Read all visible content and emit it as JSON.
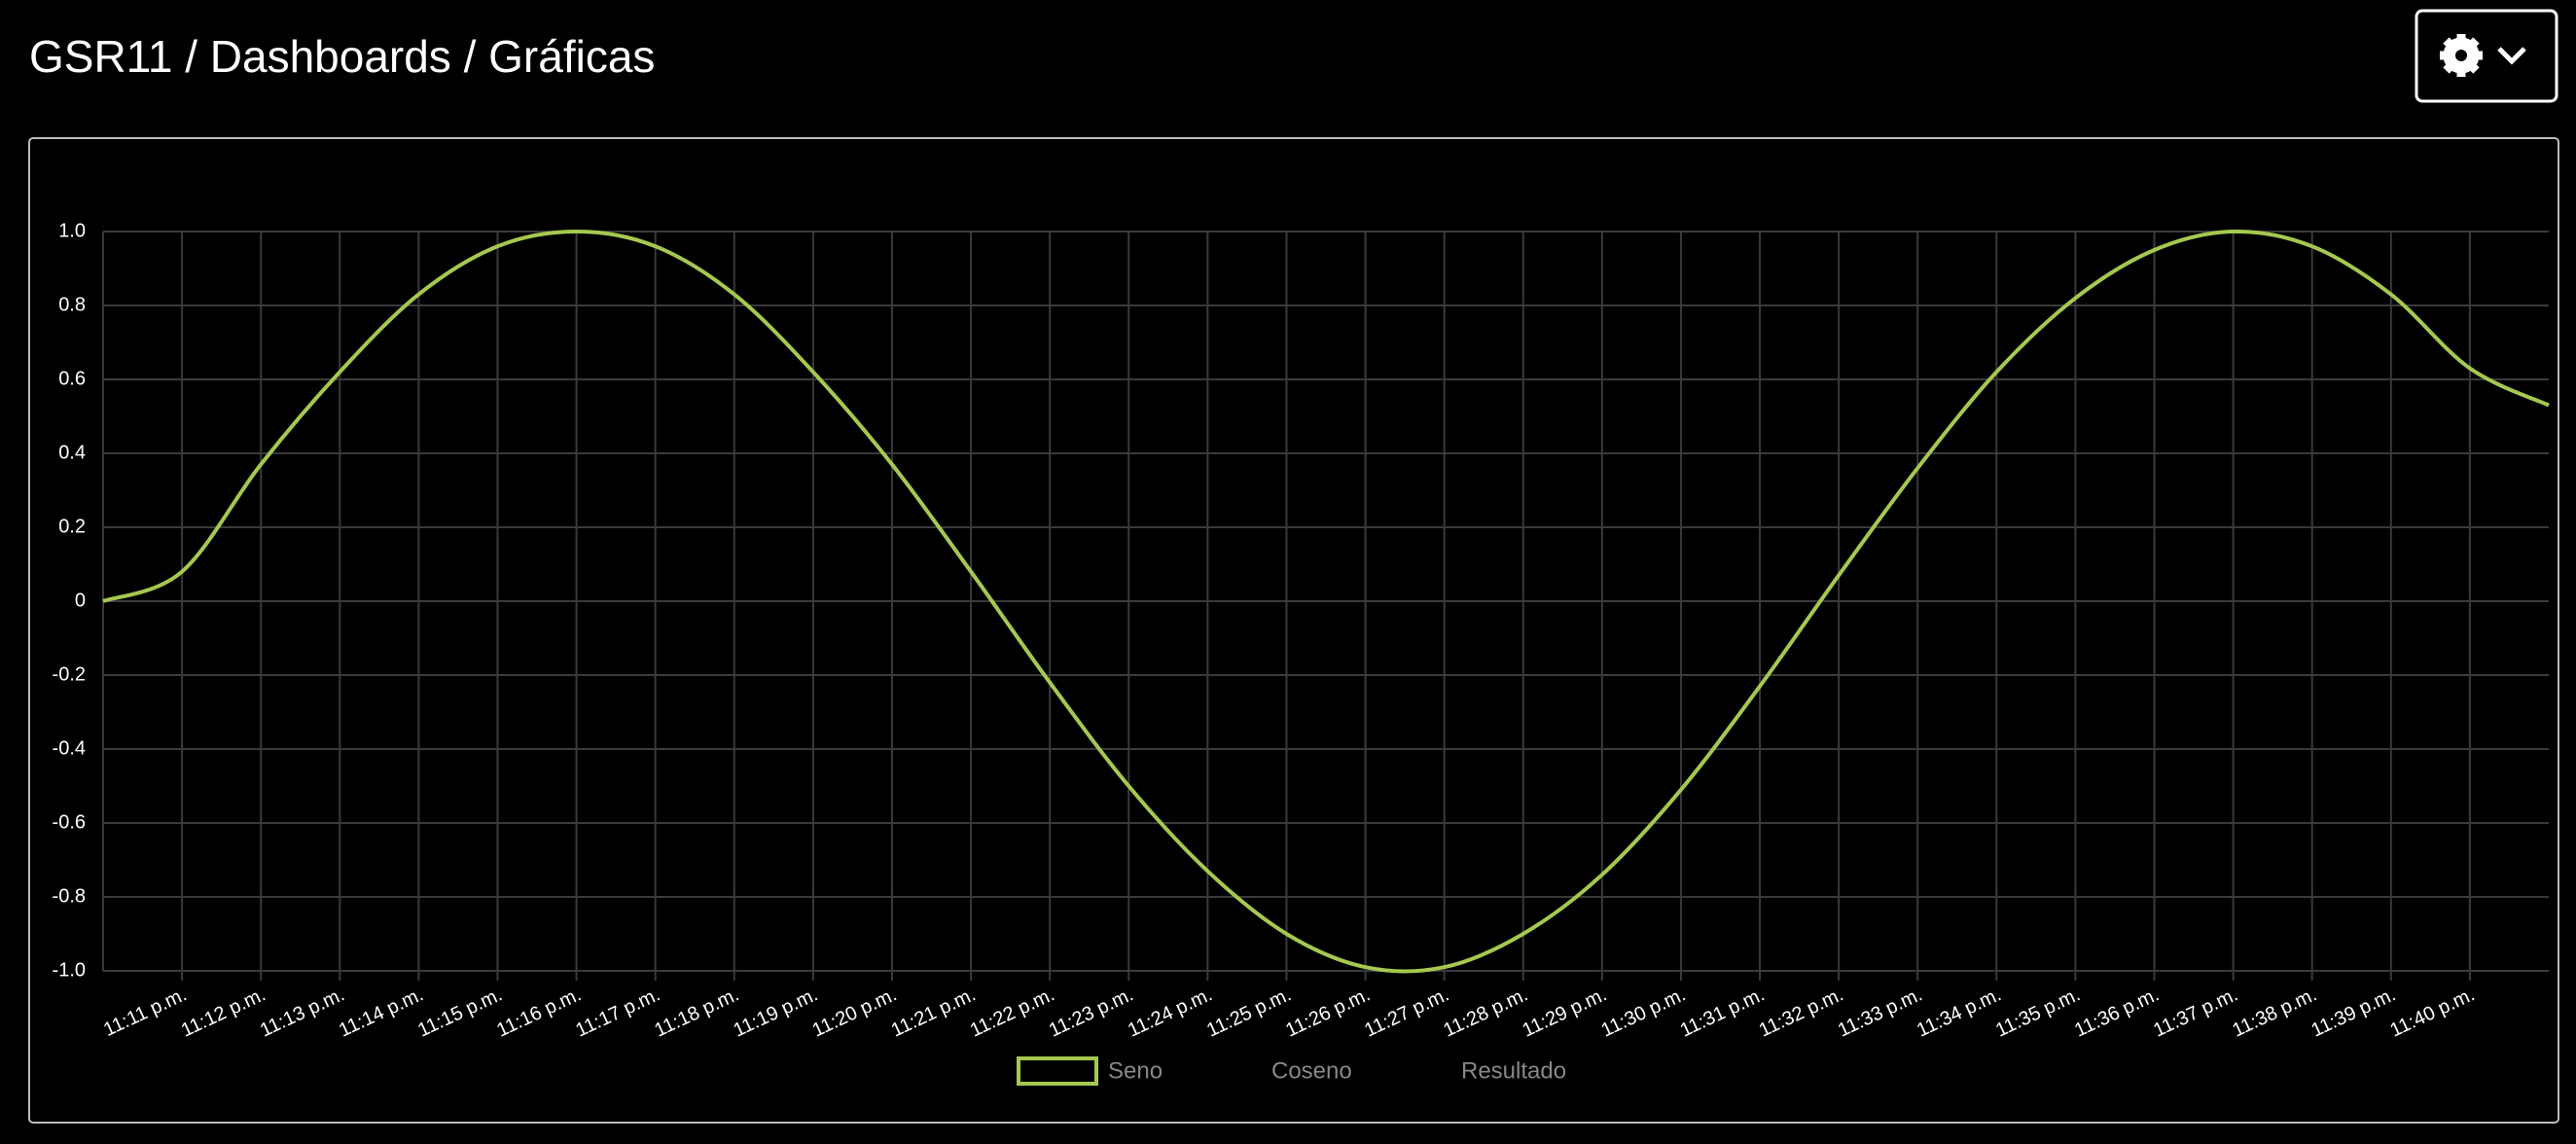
{
  "header": {
    "title": "GSR11 / Dashboards / Gráficas"
  },
  "chart_data": {
    "type": "line",
    "categories": [
      null,
      "11:11 p.m.",
      "11:12 p.m.",
      "11:13 p.m.",
      "11:14 p.m.",
      "11:15 p.m.",
      "11:16 p.m.",
      "11:17 p.m.",
      "11:18 p.m.",
      "11:19 p.m.",
      "11:20 p.m.",
      "11:21 p.m.",
      "11:22 p.m.",
      "11:23 p.m.",
      "11:24 p.m.",
      "11:25 p.m.",
      "11:26 p.m.",
      "11:27 p.m.",
      "11:28 p.m.",
      "11:29 p.m.",
      "11:30 p.m.",
      "11:31 p.m.",
      "11:32 p.m.",
      "11:33 p.m.",
      "11:34 p.m.",
      "11:35 p.m.",
      "11:36 p.m.",
      "11:37 p.m.",
      "11:38 p.m.",
      "11:39 p.m.",
      "11:40 p.m.",
      null
    ],
    "series": [
      {
        "name": "Seno",
        "color": "#a5c850",
        "hidden": false,
        "values": [
          0,
          0.08,
          0.37,
          0.62,
          0.83,
          0.96,
          1.0,
          0.96,
          0.83,
          0.62,
          0.37,
          0.08,
          -0.22,
          -0.5,
          -0.73,
          -0.9,
          -0.99,
          -0.99,
          -0.9,
          -0.74,
          -0.51,
          -0.23,
          0.07,
          0.36,
          0.62,
          0.82,
          0.95,
          1.0,
          0.96,
          0.83,
          0.63,
          0.53
        ]
      },
      {
        "name": "Coseno",
        "color": "#4f8fc8",
        "hidden": true,
        "values": [
          null,
          null,
          null,
          null,
          null,
          null,
          null,
          null,
          null,
          null,
          null,
          null,
          null,
          null,
          null,
          null,
          null,
          null,
          null,
          null,
          null,
          null,
          null,
          null,
          null,
          null,
          null,
          null,
          null,
          null,
          null,
          null
        ]
      },
      {
        "name": "Resultado",
        "color": "#d0604f",
        "hidden": true,
        "values": [
          null,
          null,
          null,
          null,
          null,
          null,
          null,
          null,
          null,
          null,
          null,
          null,
          null,
          null,
          null,
          null,
          null,
          null,
          null,
          null,
          null,
          null,
          null,
          null,
          null,
          null,
          null,
          null,
          null,
          null,
          null,
          null
        ]
      }
    ],
    "ylim": [
      -1,
      1
    ],
    "yticks": [
      {
        "value": -1,
        "label": "-1.0"
      },
      -0.8,
      -0.6,
      -0.4,
      -0.2,
      0,
      0.2,
      0.4,
      0.6,
      0.8,
      {
        "value": 1,
        "label": "1.0"
      }
    ],
    "grid": true,
    "legend": "bottom"
  }
}
